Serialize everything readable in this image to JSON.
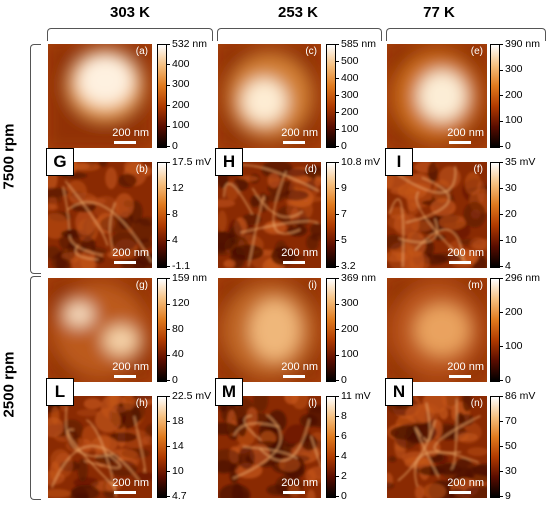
{
  "figure": {
    "columns": [
      "303 K",
      "253 K",
      "77 K"
    ],
    "rows": [
      "7500 rpm",
      "2500 rpm"
    ],
    "big_letters": [
      "G",
      "H",
      "I",
      "L",
      "M",
      "N"
    ],
    "scale_bar_label": "200 nm",
    "panels": [
      {
        "label": "(a)",
        "colorbar": [
          "532 nm",
          "400",
          "300",
          "200",
          "100",
          "0"
        ]
      },
      {
        "label": "(b)",
        "colorbar": [
          "17.5 mV",
          "12",
          "8",
          "4",
          "-1.1"
        ]
      },
      {
        "label": "(c)",
        "colorbar": [
          "585 nm",
          "500",
          "400",
          "300",
          "200",
          "100",
          "0"
        ]
      },
      {
        "label": "(d)",
        "colorbar": [
          "10.8 mV",
          "9",
          "7",
          "5",
          "3.2"
        ]
      },
      {
        "label": "(e)",
        "colorbar": [
          "390 nm",
          "300",
          "200",
          "100",
          "0"
        ]
      },
      {
        "label": "(f)",
        "colorbar": [
          "35 mV",
          "30",
          "20",
          "10",
          "4"
        ]
      },
      {
        "label": "(g)",
        "colorbar": [
          "159 nm",
          "120",
          "80",
          "40",
          "0"
        ]
      },
      {
        "label": "(h)",
        "colorbar": [
          "22.5 mV",
          "18",
          "14",
          "10",
          "4.7"
        ]
      },
      {
        "label": "(i)",
        "colorbar": [
          "369 nm",
          "300",
          "200",
          "100",
          "0"
        ]
      },
      {
        "label": "(l)",
        "colorbar": [
          "11 mV",
          "8",
          "6",
          "4",
          "2",
          "0"
        ]
      },
      {
        "label": "(m)",
        "colorbar": [
          "296 nm",
          "200",
          "100",
          "0"
        ]
      },
      {
        "label": "(n)",
        "colorbar": [
          "86 mV",
          "70",
          "50",
          "30",
          "9"
        ]
      }
    ],
    "colors": {
      "colormap": [
        "#000000",
        "#5a0d00",
        "#b03a00",
        "#e07a1e",
        "#f6c080",
        "#ffffff"
      ]
    }
  }
}
